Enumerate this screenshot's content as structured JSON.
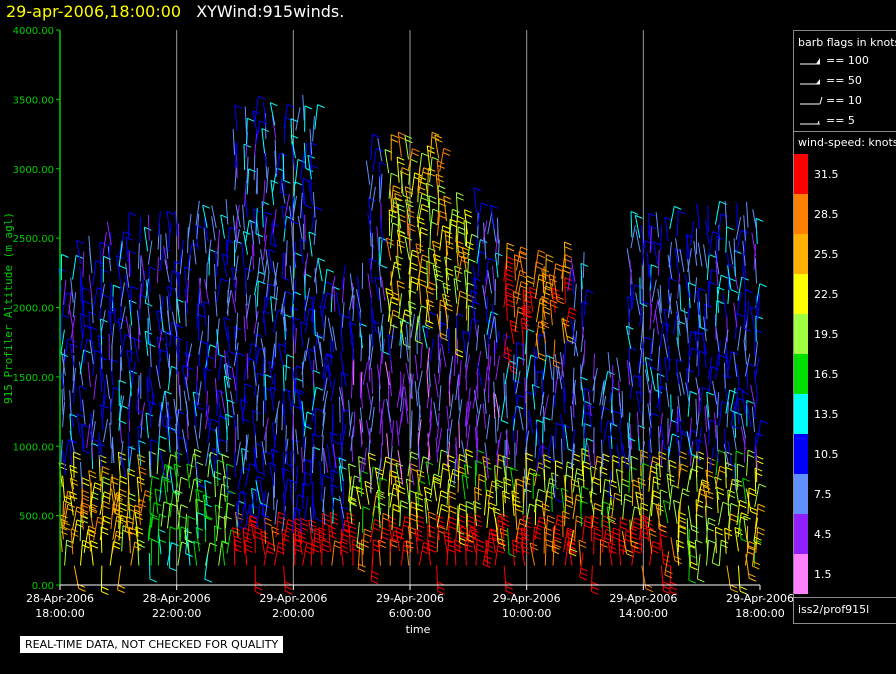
{
  "header": {
    "date_time": "29-apr-2006,18:00:00",
    "product": "XYWind:915winds."
  },
  "chart_data": {
    "type": "wind-barb time-height",
    "ylabel": "915 Profiler Altitude (m agl)",
    "xlabel": "time",
    "ylim": [
      0,
      4000
    ],
    "y_ticks": [
      "0.00",
      "500.00",
      "1000.00",
      "1500.00",
      "2000.00",
      "2500.00",
      "3000.00",
      "3500.00",
      "4000.00"
    ],
    "xlim_hours": [
      0,
      24
    ],
    "x_ticks": [
      {
        "h": 0,
        "date": "28-Apr-2006",
        "time": "18:00:00"
      },
      {
        "h": 4,
        "date": "28-Apr-2006",
        "time": "22:00:00"
      },
      {
        "h": 8,
        "date": "29-Apr-2006",
        "time": "2:00:00"
      },
      {
        "h": 12,
        "date": "29-Apr-2006",
        "time": "6:00:00"
      },
      {
        "h": 16,
        "date": "29-Apr-2006",
        "time": "10:00:00"
      },
      {
        "h": 20,
        "date": "29-Apr-2006",
        "time": "14:00:00"
      },
      {
        "h": 24,
        "date": "29-Apr-2006",
        "time": "18:00:00"
      }
    ],
    "grid": "vertical lines at x ticks",
    "note": "approximately 24 hours of profiler wind barbs, colored by wind speed"
  },
  "legend": {
    "barb_title": "barb flags in knots",
    "flags": [
      "== 100",
      "== 50",
      "== 10",
      "== 5"
    ],
    "speed_title": "wind-speed: knots",
    "scale": [
      {
        "label": "31.5",
        "color": "#ff0000"
      },
      {
        "label": "28.5",
        "color": "#ff8000"
      },
      {
        "label": "25.5",
        "color": "#ffb000"
      },
      {
        "label": "22.5",
        "color": "#ffff00"
      },
      {
        "label": "19.5",
        "color": "#a0ff40"
      },
      {
        "label": "16.5",
        "color": "#00e000"
      },
      {
        "label": "13.5",
        "color": "#00ffff"
      },
      {
        "label": "10.5",
        "color": "#0000ff"
      },
      {
        "label": "7.5",
        "color": "#6090ff"
      },
      {
        "label": "4.5",
        "color": "#9020ff"
      },
      {
        "label": "1.5",
        "color": "#ff80ff"
      }
    ],
    "source": "iss2/prof915l"
  },
  "footer": {
    "qc_note": "REAL-TIME DATA, NOT CHECKED FOR QUALITY"
  }
}
